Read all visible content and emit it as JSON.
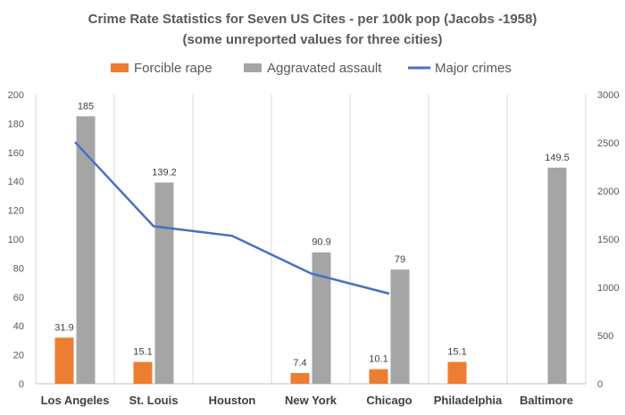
{
  "chart_data": {
    "type": "bar",
    "title_line1": "Crime Rate Statistics for Seven US Cites - per 100k pop (Jacobs -1958)",
    "title_line2": "(some unreported values for three cities)",
    "categories": [
      "Los Angeles",
      "St. Louis",
      "Houston",
      "New York",
      "Chicago",
      "Philadelphia",
      "Baltimore"
    ],
    "series": [
      {
        "name": "Forcible rape",
        "type": "bar",
        "axis": "left",
        "color": "#ED7D31",
        "values": [
          31.9,
          15.1,
          null,
          7.4,
          10.1,
          15.1,
          null
        ],
        "labels": [
          "31.9",
          "15.1",
          "",
          "7.4",
          "10.1",
          "15.1",
          ""
        ]
      },
      {
        "name": "Aggravated assault",
        "type": "bar",
        "axis": "left",
        "color": "#A5A5A5",
        "values": [
          185,
          139.2,
          null,
          90.9,
          79,
          null,
          149.5
        ],
        "labels": [
          "185",
          "139.2",
          "",
          "90.9",
          "79",
          "",
          "149.5"
        ]
      },
      {
        "name": "Major crimes",
        "type": "line",
        "axis": "right",
        "color": "#4472C4",
        "values": [
          2507,
          1634,
          1535,
          1145,
          935,
          null,
          null
        ]
      }
    ],
    "y_left": {
      "min": 0,
      "max": 200,
      "step": 20,
      "ticks": [
        "0",
        "20",
        "40",
        "60",
        "80",
        "100",
        "120",
        "140",
        "160",
        "180",
        "200"
      ]
    },
    "y_right": {
      "min": 0,
      "max": 3000,
      "step": 500,
      "ticks": [
        "0",
        "500",
        "1000",
        "1500",
        "2000",
        "2500",
        "3000"
      ]
    },
    "legend_position": "top",
    "grid": "vertical category separators"
  }
}
